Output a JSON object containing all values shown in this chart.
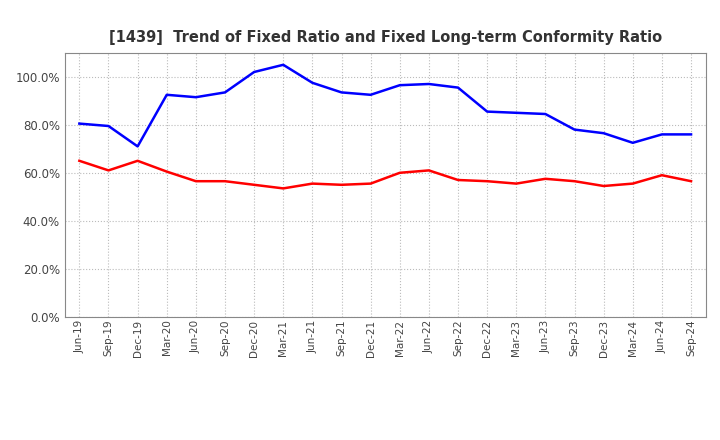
{
  "title": "[1439]  Trend of Fixed Ratio and Fixed Long-term Conformity Ratio",
  "x_labels": [
    "Jun-19",
    "Sep-19",
    "Dec-19",
    "Mar-20",
    "Jun-20",
    "Sep-20",
    "Dec-20",
    "Mar-21",
    "Jun-21",
    "Sep-21",
    "Dec-21",
    "Mar-22",
    "Jun-22",
    "Sep-22",
    "Dec-22",
    "Mar-23",
    "Jun-23",
    "Sep-23",
    "Dec-23",
    "Mar-24",
    "Jun-24",
    "Sep-24"
  ],
  "fixed_ratio": [
    80.5,
    79.5,
    71.0,
    92.5,
    91.5,
    93.5,
    102.0,
    105.0,
    97.5,
    93.5,
    92.5,
    96.5,
    97.0,
    95.5,
    85.5,
    85.0,
    84.5,
    78.0,
    76.5,
    72.5,
    76.0,
    76.0
  ],
  "fixed_lt_ratio": [
    65.0,
    61.0,
    65.0,
    60.5,
    56.5,
    56.5,
    55.0,
    53.5,
    55.5,
    55.0,
    55.5,
    60.0,
    61.0,
    57.0,
    56.5,
    55.5,
    57.5,
    56.5,
    54.5,
    55.5,
    59.0,
    56.5
  ],
  "fixed_ratio_color": "#0000FF",
  "fixed_lt_ratio_color": "#FF0000",
  "ylim": [
    0,
    110
  ],
  "yticks": [
    0,
    20,
    40,
    60,
    80,
    100
  ],
  "background_color": "#FFFFFF",
  "grid_color": "#BBBBBB"
}
